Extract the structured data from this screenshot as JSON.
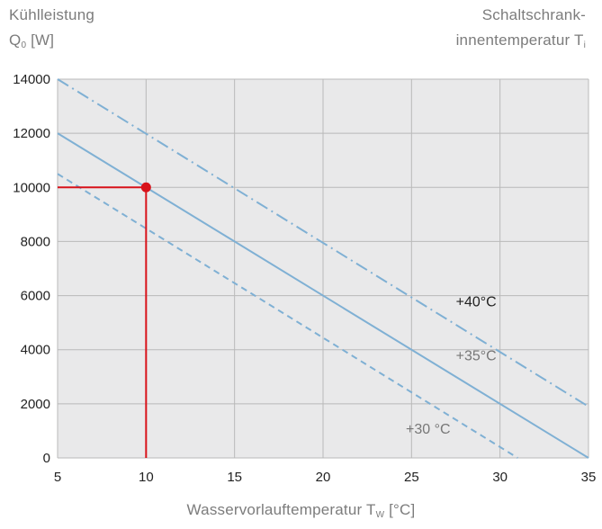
{
  "labels": {
    "y_title_line1": "Kühlleistung",
    "y_title_q": "Q",
    "y_title_q_sub": "0",
    "y_title_unit": " [W]",
    "right_title_line1": "Schaltschrank-",
    "right_title_line2": "innentemperatur T",
    "right_title_sub": "i",
    "x_title_main": "Wasservorlauftemperatur T",
    "x_title_sub": "W",
    "x_title_unit": " [°C]"
  },
  "colors": {
    "series": "#7fb0d4",
    "marker": "#d8121a",
    "grid": "#b9b9b9",
    "plot_bg": "#e9e9ea"
  },
  "chart_data": {
    "type": "line",
    "xlim": [
      5,
      35
    ],
    "ylim": [
      0,
      14000
    ],
    "xticks": [
      5,
      10,
      15,
      20,
      25,
      30,
      35
    ],
    "yticks": [
      0,
      2000,
      4000,
      6000,
      8000,
      10000,
      12000,
      14000
    ],
    "grid": true,
    "series": [
      {
        "name": "+40°C",
        "style": "dash-dot",
        "x": [
          5,
          35
        ],
        "y": [
          14000,
          1900
        ]
      },
      {
        "name": "+35°C",
        "style": "solid",
        "x": [
          5,
          35
        ],
        "y": [
          12000,
          0
        ]
      },
      {
        "name": "+30 °C",
        "style": "dashed",
        "x": [
          5,
          31
        ],
        "y": [
          10500,
          0
        ]
      }
    ],
    "highlight_point": {
      "x": 10,
      "y": 10000
    }
  }
}
